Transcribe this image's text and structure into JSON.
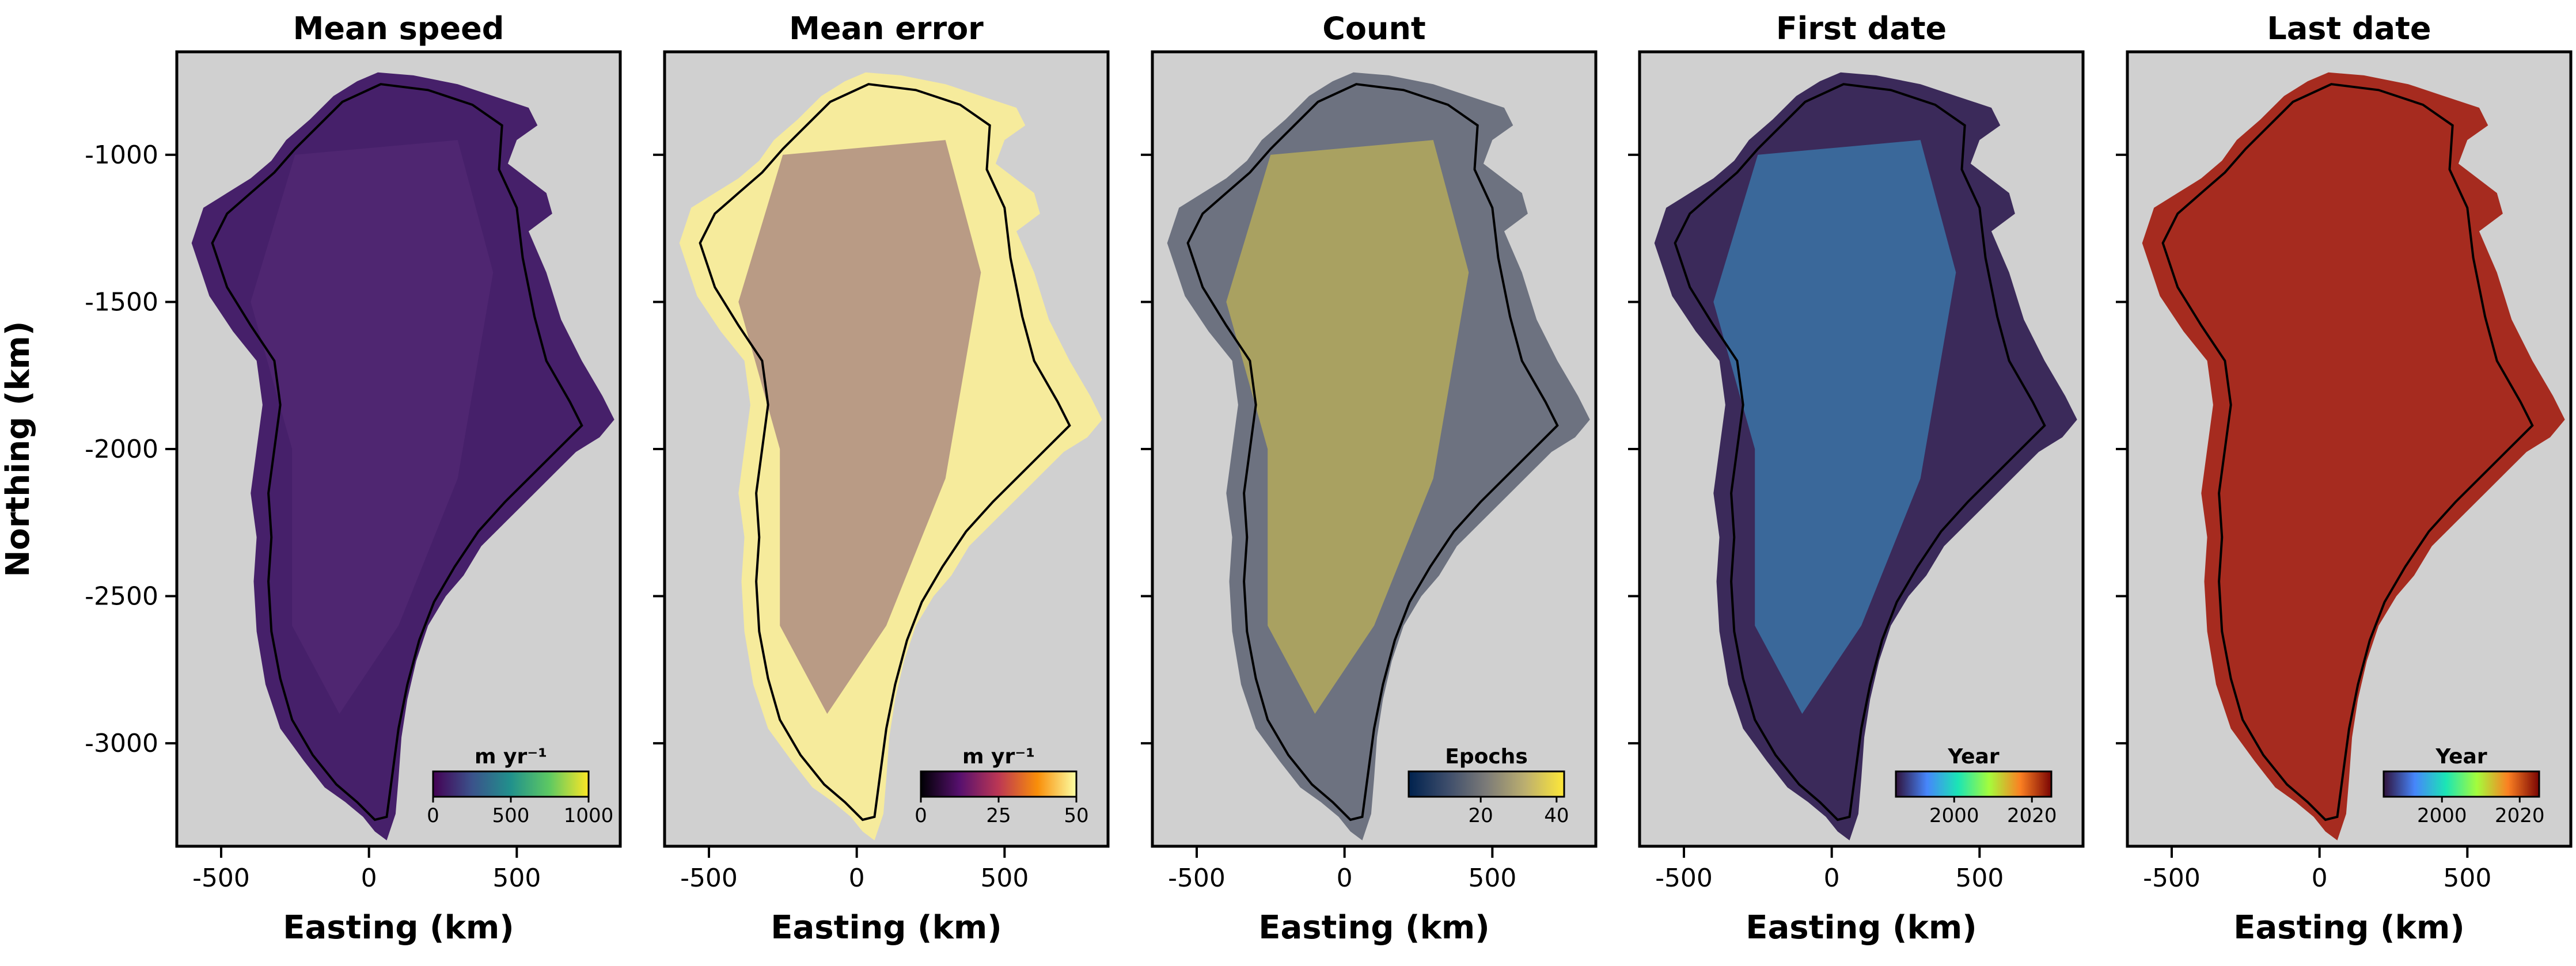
{
  "figure": {
    "ylabel": "Northing (km)",
    "xlabel": "Easting (km)",
    "x_ticks": [
      -500,
      0,
      500
    ],
    "y_ticks": [
      -1000,
      -1500,
      -2000,
      -2500,
      -3000
    ]
  },
  "chart_data": [
    {
      "type": "heatmap",
      "title": "Mean speed",
      "xlabel": "Easting (km)",
      "ylabel": "Northing (km)",
      "xlim": [
        -650,
        850
      ],
      "ylim": [
        -3350,
        -650
      ],
      "colorbar": {
        "label": "m yr⁻¹",
        "ticks": [
          0,
          500,
          1000
        ],
        "range": [
          0,
          1000
        ],
        "colormap": "viridis"
      },
      "fill_color": "#46206a",
      "secondary_color": "#5a2f7a"
    },
    {
      "type": "heatmap",
      "title": "Mean error",
      "xlabel": "Easting (km)",
      "xlim": [
        -650,
        850
      ],
      "ylim": [
        -3350,
        -650
      ],
      "colorbar": {
        "label": "m yr⁻¹",
        "ticks": [
          0,
          25,
          50
        ],
        "range": [
          0,
          50
        ],
        "colormap": "inferno"
      },
      "fill_color": "#f6eb9c",
      "secondary_color": "#6e3a6b"
    },
    {
      "type": "heatmap",
      "title": "Count",
      "xlabel": "Easting (km)",
      "xlim": [
        -650,
        850
      ],
      "ylim": [
        -3350,
        -650
      ],
      "colorbar": {
        "label": "Epochs",
        "ticks": [
          20,
          40
        ],
        "range": [
          1,
          42
        ],
        "colormap": "cividis"
      },
      "fill_color": "#6d7280",
      "secondary_color": "#f2dc3c"
    },
    {
      "type": "heatmap",
      "title": "First date",
      "xlabel": "Easting (km)",
      "xlim": [
        -650,
        850
      ],
      "ylim": [
        -3350,
        -650
      ],
      "colorbar": {
        "label": "Year",
        "ticks": [
          2000,
          2020
        ],
        "range": [
          1985,
          2025
        ],
        "colormap": "turbo"
      },
      "fill_color": "#3b2a5a",
      "secondary_color": "#3ab3e8"
    },
    {
      "type": "heatmap",
      "title": "Last date",
      "xlabel": "Easting (km)",
      "xlim": [
        -650,
        850
      ],
      "ylim": [
        -3350,
        -650
      ],
      "colorbar": {
        "label": "Year",
        "ticks": [
          2000,
          2020
        ],
        "range": [
          1985,
          2025
        ],
        "colormap": "turbo"
      },
      "fill_color": "#a62b1f",
      "secondary_color": "#a62b1f"
    }
  ],
  "colormaps": {
    "viridis": [
      "#440154",
      "#3b528b",
      "#21918c",
      "#5ec962",
      "#fde725"
    ],
    "inferno": [
      "#000004",
      "#57106e",
      "#bc3754",
      "#f98e09",
      "#fcffa4"
    ],
    "cividis": [
      "#00224e",
      "#3d4d6b",
      "#7c7b78",
      "#bcaf6f",
      "#fee838"
    ],
    "turbo": [
      "#30123b",
      "#4686fb",
      "#1be5b5",
      "#a4fc3c",
      "#fb8022",
      "#7a0403"
    ]
  },
  "background_color": "#d0d0d0"
}
